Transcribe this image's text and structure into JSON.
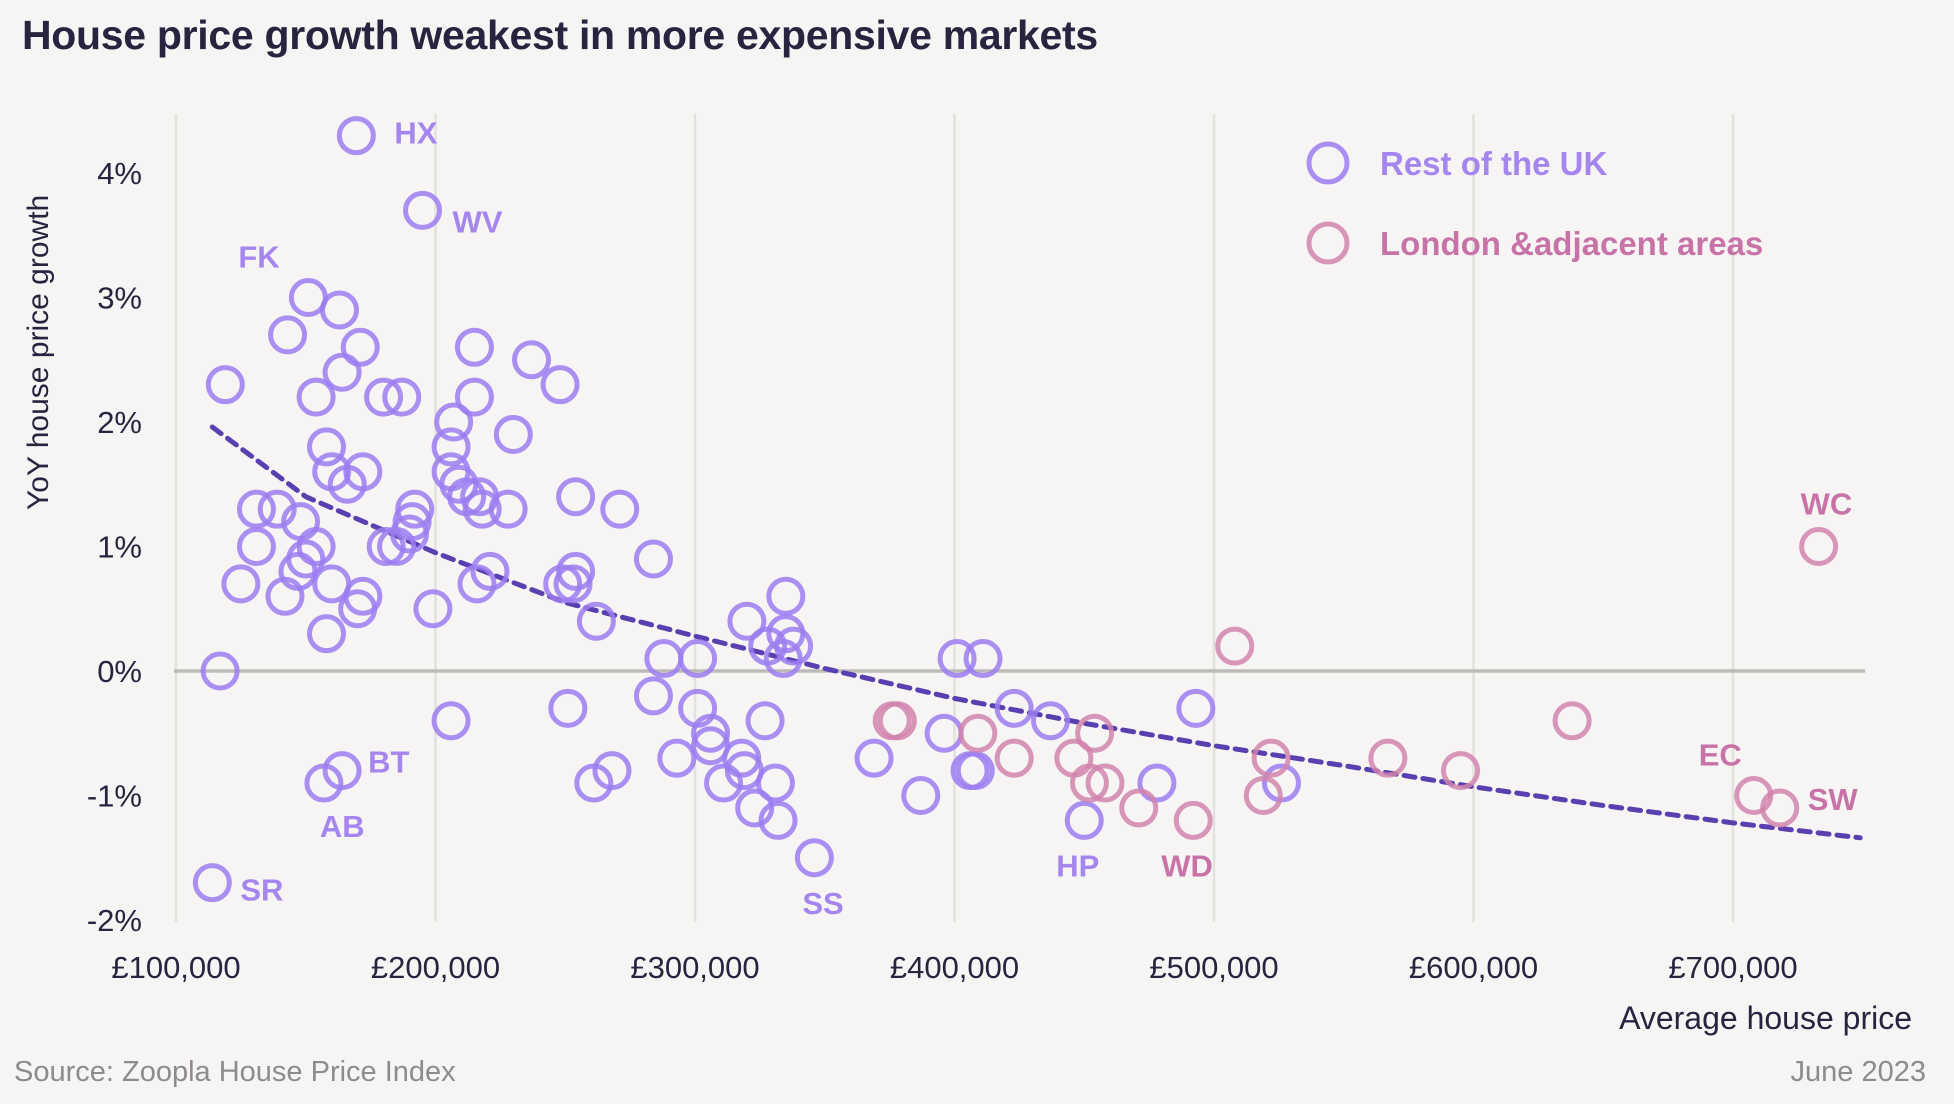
{
  "title": "House price growth weakest in more expensive markets",
  "source": "Source: Zoopla House Price Index",
  "date": "June 2023",
  "colors": {
    "rest_of_uk": "#9b7cf0",
    "london": "#d184ad",
    "rest_label": "#a586ee",
    "london_label": "#c873a8",
    "trend": "#5a3fb0",
    "grid": "#e3e1de",
    "zero_line": "#bdbbb8",
    "background": "#f6f5f3"
  },
  "chart_data": {
    "type": "scatter",
    "title": "House price growth weakest in more expensive markets",
    "xlabel": "Average house price",
    "ylabel": "YoY house price growth",
    "xlim": [
      100000,
      750000
    ],
    "ylim": [
      -2,
      4.5
    ],
    "x_ticks": [
      100000,
      200000,
      300000,
      400000,
      500000,
      600000,
      700000
    ],
    "x_tick_labels": [
      "£100,000",
      "£200,000",
      "£300,000",
      "£400,000",
      "£500,000",
      "£600,000",
      "£700,000"
    ],
    "y_ticks": [
      -2,
      -1,
      0,
      1,
      2,
      3,
      4
    ],
    "y_tick_labels": [
      "-2%",
      "-1%",
      "0%",
      "1%",
      "2%",
      "3%",
      "4%"
    ],
    "grid": "vertical",
    "legend_position": "top-right",
    "series": [
      {
        "name": "Rest of the UK",
        "points": [
          {
            "x": 169500,
            "y": 4.3,
            "label": "HX"
          },
          {
            "x": 195000,
            "y": 3.7,
            "label": "WV"
          },
          {
            "x": 151000,
            "y": 3.0,
            "label": "FK"
          },
          {
            "x": 163000,
            "y": 2.9
          },
          {
            "x": 143000,
            "y": 2.7
          },
          {
            "x": 171000,
            "y": 2.6
          },
          {
            "x": 164000,
            "y": 2.4
          },
          {
            "x": 119000,
            "y": 2.3
          },
          {
            "x": 154000,
            "y": 2.2
          },
          {
            "x": 180000,
            "y": 2.2
          },
          {
            "x": 187000,
            "y": 2.2
          },
          {
            "x": 158000,
            "y": 1.8
          },
          {
            "x": 172000,
            "y": 1.6
          },
          {
            "x": 160000,
            "y": 1.6
          },
          {
            "x": 166000,
            "y": 1.5
          },
          {
            "x": 131000,
            "y": 1.3
          },
          {
            "x": 139000,
            "y": 1.3
          },
          {
            "x": 148000,
            "y": 1.2
          },
          {
            "x": 154000,
            "y": 1.0
          },
          {
            "x": 131000,
            "y": 1.0
          },
          {
            "x": 150000,
            "y": 0.9
          },
          {
            "x": 147000,
            "y": 0.8
          },
          {
            "x": 125000,
            "y": 0.7
          },
          {
            "x": 160000,
            "y": 0.7
          },
          {
            "x": 142000,
            "y": 0.6
          },
          {
            "x": 172000,
            "y": 0.6
          },
          {
            "x": 170000,
            "y": 0.5
          },
          {
            "x": 158000,
            "y": 0.3
          },
          {
            "x": 117000,
            "y": 0.0
          },
          {
            "x": 215000,
            "y": 2.6
          },
          {
            "x": 237000,
            "y": 2.5
          },
          {
            "x": 248000,
            "y": 2.3
          },
          {
            "x": 215000,
            "y": 2.2
          },
          {
            "x": 230000,
            "y": 1.9
          },
          {
            "x": 207000,
            "y": 2.0
          },
          {
            "x": 206000,
            "y": 1.8
          },
          {
            "x": 206000,
            "y": 1.6
          },
          {
            "x": 209000,
            "y": 1.5
          },
          {
            "x": 212000,
            "y": 1.4
          },
          {
            "x": 217000,
            "y": 1.4
          },
          {
            "x": 218000,
            "y": 1.3
          },
          {
            "x": 228000,
            "y": 1.3
          },
          {
            "x": 192000,
            "y": 1.3
          },
          {
            "x": 191000,
            "y": 1.2
          },
          {
            "x": 190000,
            "y": 1.1
          },
          {
            "x": 181000,
            "y": 1.0
          },
          {
            "x": 185000,
            "y": 1.0
          },
          {
            "x": 221000,
            "y": 0.8
          },
          {
            "x": 216000,
            "y": 0.7
          },
          {
            "x": 199000,
            "y": 0.5
          },
          {
            "x": 254000,
            "y": 1.4
          },
          {
            "x": 271000,
            "y": 1.3
          },
          {
            "x": 284000,
            "y": 0.9
          },
          {
            "x": 249000,
            "y": 0.7
          },
          {
            "x": 254000,
            "y": 0.8
          },
          {
            "x": 253000,
            "y": 0.7
          },
          {
            "x": 262000,
            "y": 0.4
          },
          {
            "x": 288000,
            "y": 0.1
          },
          {
            "x": 301000,
            "y": 0.1
          },
          {
            "x": 320000,
            "y": 0.4
          },
          {
            "x": 335000,
            "y": 0.6
          },
          {
            "x": 335000,
            "y": 0.3
          },
          {
            "x": 328000,
            "y": 0.2
          },
          {
            "x": 338000,
            "y": 0.2
          },
          {
            "x": 334000,
            "y": 0.1
          },
          {
            "x": 206000,
            "y": -0.4
          },
          {
            "x": 251000,
            "y": -0.3
          },
          {
            "x": 284000,
            "y": -0.2
          },
          {
            "x": 301000,
            "y": -0.3
          },
          {
            "x": 306000,
            "y": -0.5
          },
          {
            "x": 306000,
            "y": -0.6
          },
          {
            "x": 327000,
            "y": -0.4
          },
          {
            "x": 261000,
            "y": -0.9
          },
          {
            "x": 268000,
            "y": -0.8
          },
          {
            "x": 293000,
            "y": -0.7
          },
          {
            "x": 311000,
            "y": -0.9
          },
          {
            "x": 318000,
            "y": -0.7
          },
          {
            "x": 319000,
            "y": -0.8
          },
          {
            "x": 323000,
            "y": -1.1
          },
          {
            "x": 331000,
            "y": -0.9
          },
          {
            "x": 332000,
            "y": -1.2
          },
          {
            "x": 346000,
            "y": -1.5,
            "label": "SS"
          },
          {
            "x": 164000,
            "y": -0.8,
            "label": "BT"
          },
          {
            "x": 157000,
            "y": -0.9,
            "label": "AB"
          },
          {
            "x": 114000,
            "y": -1.7,
            "label": "SR"
          },
          {
            "x": 369000,
            "y": -0.7
          },
          {
            "x": 387000,
            "y": -1.0
          },
          {
            "x": 396000,
            "y": -0.5
          },
          {
            "x": 401000,
            "y": 0.1
          },
          {
            "x": 411000,
            "y": 0.1
          },
          {
            "x": 406000,
            "y": -0.8
          },
          {
            "x": 408000,
            "y": -0.8
          },
          {
            "x": 423000,
            "y": -0.3
          },
          {
            "x": 437000,
            "y": -0.4
          },
          {
            "x": 478000,
            "y": -0.9
          },
          {
            "x": 450000,
            "y": -1.2,
            "label": "HP"
          },
          {
            "x": 493000,
            "y": -0.3
          },
          {
            "x": 526000,
            "y": -0.9
          }
        ]
      },
      {
        "name": "London & adjacent areas",
        "points": [
          {
            "x": 376000,
            "y": -0.4
          },
          {
            "x": 378000,
            "y": -0.4
          },
          {
            "x": 409000,
            "y": -0.5
          },
          {
            "x": 423000,
            "y": -0.7
          },
          {
            "x": 446000,
            "y": -0.7
          },
          {
            "x": 454000,
            "y": -0.5
          },
          {
            "x": 452000,
            "y": -0.9
          },
          {
            "x": 458000,
            "y": -0.9
          },
          {
            "x": 471000,
            "y": -1.1
          },
          {
            "x": 492000,
            "y": -1.2,
            "label": "WD"
          },
          {
            "x": 508000,
            "y": 0.2
          },
          {
            "x": 519000,
            "y": -1.0
          },
          {
            "x": 522000,
            "y": -0.7
          },
          {
            "x": 567000,
            "y": -0.7
          },
          {
            "x": 595000,
            "y": -0.8
          },
          {
            "x": 638000,
            "y": -0.4
          },
          {
            "x": 708000,
            "y": -1.0,
            "label": "EC"
          },
          {
            "x": 718000,
            "y": -1.1,
            "label": "SW"
          },
          {
            "x": 733000,
            "y": 1.0,
            "label": "WC"
          }
        ]
      }
    ],
    "trendline": {
      "type": "logarithmic",
      "style": "dashed",
      "x_range": [
        114000,
        749000
      ],
      "points": [
        {
          "x": 114000,
          "y": 1.96
        },
        {
          "x": 150000,
          "y": 1.4
        },
        {
          "x": 200000,
          "y": 0.95
        },
        {
          "x": 250000,
          "y": 0.55
        },
        {
          "x": 300000,
          "y": 0.28
        },
        {
          "x": 350000,
          "y": 0.02
        },
        {
          "x": 400000,
          "y": -0.22
        },
        {
          "x": 450000,
          "y": -0.42
        },
        {
          "x": 500000,
          "y": -0.6
        },
        {
          "x": 550000,
          "y": -0.76
        },
        {
          "x": 600000,
          "y": -0.93
        },
        {
          "x": 650000,
          "y": -1.08
        },
        {
          "x": 700000,
          "y": -1.22
        },
        {
          "x": 749000,
          "y": -1.34
        }
      ]
    },
    "legend": [
      "Rest of the UK",
      "London &adjacent  areas"
    ]
  }
}
